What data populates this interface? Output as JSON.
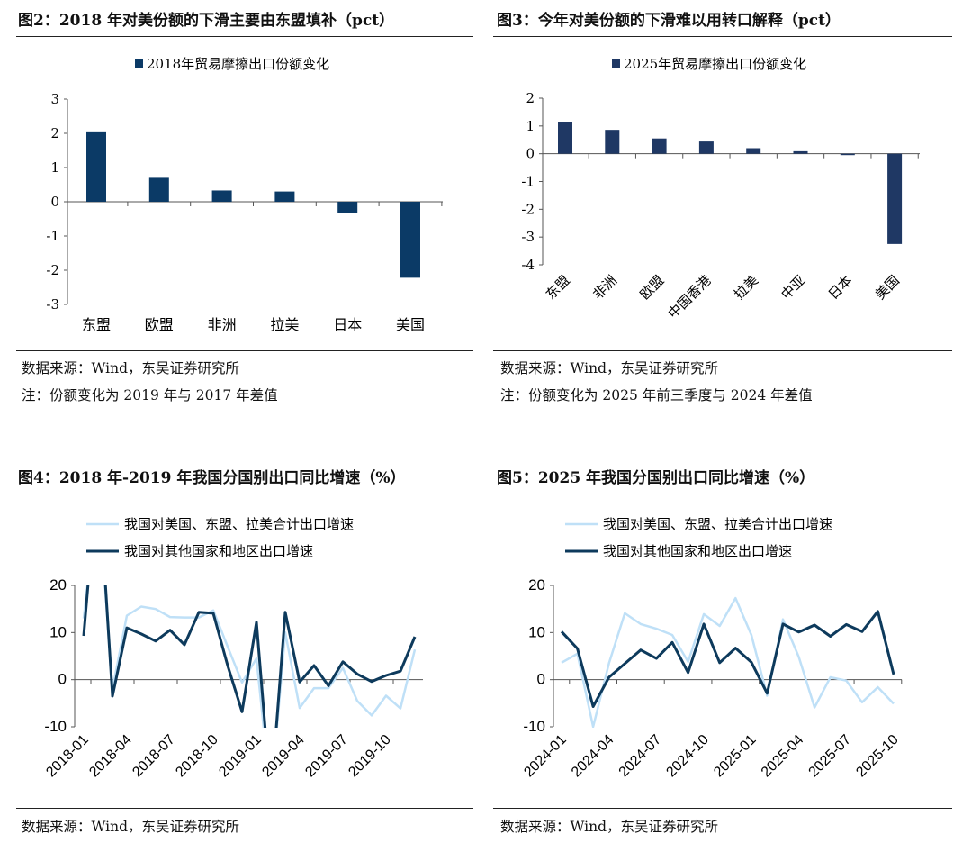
{
  "panels": [
    {
      "title": "图2：2018 年对美份额的下滑主要由东盟填补（pct）",
      "source": "数据来源：Wind，东吴证券研究所",
      "note": "注：份额变化为 2019 年与 2017 年差值"
    },
    {
      "title": "图3：今年对美份额的下滑难以用转口解释（pct）",
      "source": "数据来源：Wind，东吴证券研究所",
      "note": "注：份额变化为 2025 年前三季度与 2024 年差值"
    },
    {
      "title": "图4：2018 年-2019 年我国分国别出口同比增速（%）",
      "source": "数据来源：Wind，东吴证券研究所"
    },
    {
      "title": "图5：2025 年我国分国别出口同比增速（%）",
      "source": "数据来源：Wind，东吴证券研究所"
    }
  ],
  "chart_data": [
    {
      "type": "bar",
      "legend": "2018年贸易摩擦出口份额变化",
      "legend_position": "top",
      "categories": [
        "东盟",
        "欧盟",
        "非洲",
        "拉美",
        "日本",
        "美国"
      ],
      "values": [
        2.03,
        0.7,
        0.33,
        0.3,
        -0.33,
        -2.22
      ],
      "ylim": [
        -3,
        3
      ],
      "yticks": [
        "3",
        "2",
        "1",
        "0",
        "-1",
        "-2",
        "-3"
      ],
      "color": "#0b3a66",
      "grid": false
    },
    {
      "type": "bar",
      "legend": "2025年贸易摩擦出口份额变化",
      "legend_position": "top",
      "categories": [
        "东盟",
        "非洲",
        "欧盟",
        "中国香港",
        "拉美",
        "中亚",
        "日本",
        "美国"
      ],
      "values": [
        1.14,
        0.86,
        0.55,
        0.44,
        0.2,
        0.09,
        -0.05,
        -3.25
      ],
      "ylim": [
        -4,
        2
      ],
      "yticks": [
        "2",
        "1",
        "0",
        "-1",
        "-2",
        "-3",
        "-4"
      ],
      "color": "#1f3864",
      "grid": false
    },
    {
      "type": "line",
      "legend_position": "top-left",
      "ylim": [
        -10,
        20
      ],
      "yticks": [
        "20",
        "10",
        "0",
        "-10"
      ],
      "xticks": [
        "2018-01",
        "2018-04",
        "2018-07",
        "2018-10",
        "2019-01",
        "2019-04",
        "2019-07",
        "2019-10"
      ],
      "x": [
        "2018-01",
        "2018-02",
        "2018-03",
        "2018-04",
        "2018-05",
        "2018-06",
        "2018-07",
        "2018-08",
        "2018-09",
        "2018-10",
        "2018-11",
        "2018-12",
        "2019-01",
        "2019-02",
        "2019-03",
        "2019-04",
        "2019-05",
        "2019-06",
        "2019-07",
        "2019-08",
        "2019-09",
        "2019-10",
        "2019-11",
        "2019-12"
      ],
      "series": [
        {
          "name": "我国对美国、东盟、拉美合计出口增速",
          "color": "#bfe0f7",
          "values": [
            13,
            40,
            -2,
            13.6,
            15.5,
            15,
            13.3,
            13.2,
            13.2,
            14.7,
            7,
            -0.6,
            4.5,
            -25,
            10,
            -6,
            -1.8,
            -1.8,
            2.5,
            -4.5,
            -7.6,
            -3.4,
            -6.1,
            6.4
          ]
        },
        {
          "name": "我国对其他国家和地区出口增速",
          "color": "#0d3a5c",
          "values": [
            9.3,
            45,
            -3.5,
            11,
            9.7,
            8.2,
            10.5,
            7.4,
            14.3,
            14.1,
            3,
            -6.8,
            12.2,
            -25,
            14.3,
            -0.5,
            3,
            -1.3,
            3.8,
            1.2,
            -0.4,
            0.9,
            1.8,
            9.1
          ]
        }
      ]
    },
    {
      "type": "line",
      "legend_position": "top-left",
      "ylim": [
        -10,
        20
      ],
      "yticks": [
        "20",
        "10",
        "0",
        "-10"
      ],
      "xticks": [
        "2024-01",
        "2024-04",
        "2024-07",
        "2024-10",
        "2025-01",
        "2025-04",
        "2025-07",
        "2025-10"
      ],
      "x": [
        "2024-01",
        "2024-02",
        "2024-03",
        "2024-04",
        "2024-05",
        "2024-06",
        "2024-07",
        "2024-08",
        "2024-09",
        "2024-10",
        "2024-11",
        "2024-12",
        "2025-01",
        "2025-02",
        "2025-03",
        "2025-04",
        "2025-05",
        "2025-06",
        "2025-07",
        "2025-08",
        "2025-09",
        "2025-10"
      ],
      "series": [
        {
          "name": "我国对美国、东盟、拉美合计出口增速",
          "color": "#bfe0f7",
          "values": [
            3.6,
            5.5,
            -10,
            3.5,
            14.1,
            11.8,
            10.8,
            9.5,
            3.8,
            13.9,
            11.4,
            17.3,
            9.5,
            -3.4,
            12.8,
            4.8,
            -5.9,
            0.5,
            -0.2,
            -4.8,
            -1.6,
            -5.1
          ]
        },
        {
          "name": "我国对其他国家和地区出口增速",
          "color": "#0d3a5c",
          "values": [
            10.2,
            6.6,
            -5.7,
            0.5,
            3.4,
            6.3,
            4.5,
            7.9,
            1.5,
            11.8,
            3.6,
            6.7,
            3.7,
            -2.9,
            11.8,
            10.1,
            11.6,
            9.2,
            11.7,
            10.2,
            14.5,
            1.1
          ]
        }
      ]
    }
  ]
}
